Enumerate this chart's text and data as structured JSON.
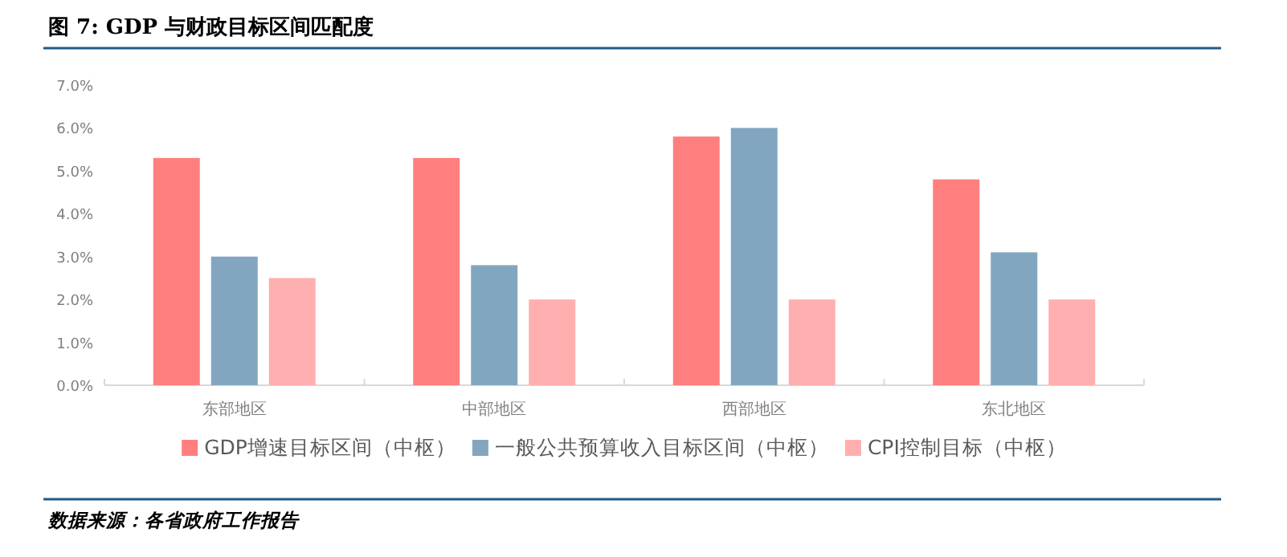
{
  "chart_data": {
    "type": "bar",
    "title": "图 7: GDP 与财政目标区间匹配度",
    "categories": [
      "东部地区",
      "中部地区",
      "西部地区",
      "东北地区"
    ],
    "series": [
      {
        "name": "GDP增速目标区间（中枢）",
        "color": "#ff7f7f",
        "values": [
          5.3,
          5.3,
          5.8,
          4.8
        ]
      },
      {
        "name": "一般公共预算收入目标区间（中枢）",
        "color": "#82a6bf",
        "values": [
          3.0,
          2.8,
          6.0,
          3.1
        ]
      },
      {
        "name": "CPI控制目标（中枢）",
        "color": "#ffafaf",
        "values": [
          2.5,
          2.0,
          2.0,
          2.0
        ]
      }
    ],
    "ylim": [
      0,
      7
    ],
    "yticks": [
      {
        "value": 0,
        "label": "0.0%"
      },
      {
        "value": 1,
        "label": "1.0%"
      },
      {
        "value": 2,
        "label": "2.0%"
      },
      {
        "value": 3,
        "label": "3.0%"
      },
      {
        "value": 4,
        "label": "4.0%"
      },
      {
        "value": 5,
        "label": "5.0%"
      },
      {
        "value": 6,
        "label": "6.0%"
      },
      {
        "value": 7,
        "label": "7.0%"
      }
    ],
    "grid": false,
    "legend": "bottom",
    "annotations": [
      "数据来源：各省政府工作报告"
    ]
  }
}
